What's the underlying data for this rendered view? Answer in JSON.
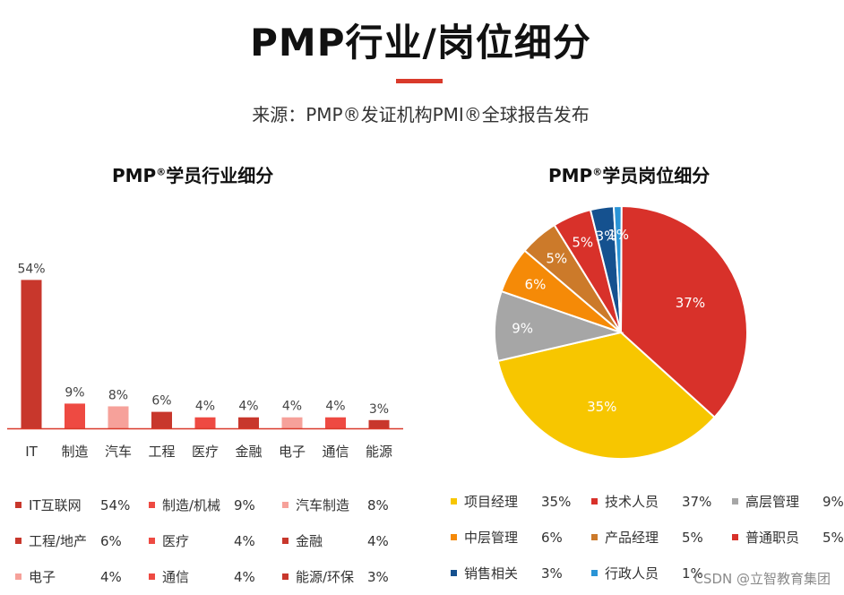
{
  "header": {
    "title": "PMP行业/岗位细分",
    "source": "来源：PMP®发证机构PMI®全球报告发布"
  },
  "colors": {
    "accent": "#d93a2b",
    "dark_red": "#c8372c",
    "red": "#ee4a42",
    "pink": "#f6a19a",
    "yellow": "#f7c600",
    "grey": "#a6a6a6",
    "orange": "#f58a07",
    "brown": "#cc7a2a",
    "navy": "#15518f",
    "blue": "#2a94d6"
  },
  "chart_data": [
    {
      "type": "bar",
      "title": "PMP",
      "title_sup": "®",
      "title_suffix": "学员行业细分",
      "categories": [
        "IT",
        "制造",
        "汽车",
        "工程",
        "医疗",
        "金融",
        "电子",
        "通信",
        "能源"
      ],
      "values": [
        54,
        9,
        8,
        6,
        4,
        4,
        4,
        4,
        3
      ],
      "value_labels": [
        "54%",
        "9%",
        "8%",
        "6%",
        "4%",
        "4%",
        "4%",
        "4%",
        "3%"
      ],
      "bar_colors": [
        "#c8372c",
        "#ee4a42",
        "#f6a19a",
        "#c8372c",
        "#ee4a42",
        "#c8372c",
        "#f6a19a",
        "#ee4a42",
        "#c8372c"
      ],
      "ylim": [
        0,
        60
      ],
      "grid": false,
      "legend": [
        {
          "label": "IT互联网",
          "value": "54%",
          "color": "#c8372c"
        },
        {
          "label": "制造/机械",
          "value": "9%",
          "color": "#ee4a42"
        },
        {
          "label": "汽车制造",
          "value": "8%",
          "color": "#f6a19a"
        },
        {
          "label": "工程/地产",
          "value": "6%",
          "color": "#c8372c"
        },
        {
          "label": "医疗",
          "value": "4%",
          "color": "#ee4a42"
        },
        {
          "label": "金融",
          "value": "4%",
          "color": "#c8372c"
        },
        {
          "label": "电子",
          "value": "4%",
          "color": "#f6a19a"
        },
        {
          "label": "通信",
          "value": "4%",
          "color": "#ee4a42"
        },
        {
          "label": "能源/环保",
          "value": "3%",
          "color": "#c8372c"
        }
      ]
    },
    {
      "type": "pie",
      "title": "PMP",
      "title_sup": "®",
      "title_suffix": "学员岗位细分",
      "slices": [
        {
          "label": "技术人员",
          "value": 37,
          "text": "37%",
          "color": "#d8312a"
        },
        {
          "label": "项目经理",
          "value": 35,
          "text": "35%",
          "color": "#f7c600"
        },
        {
          "label": "高层管理",
          "value": 9,
          "text": "9%",
          "color": "#a6a6a6"
        },
        {
          "label": "中层管理",
          "value": 6,
          "text": "6%",
          "color": "#f58a07"
        },
        {
          "label": "产品经理",
          "value": 5,
          "text": "5%",
          "color": "#cc7a2a"
        },
        {
          "label": "普通职员",
          "value": 5,
          "text": "5%",
          "color": "#d8312a"
        },
        {
          "label": "销售相关",
          "value": 3,
          "text": "3%",
          "color": "#15518f"
        },
        {
          "label": "行政人员",
          "value": 1,
          "text": "1%",
          "color": "#2a94d6"
        }
      ],
      "legend": [
        {
          "label": "项目经理",
          "value": "35%",
          "color": "#f7c600"
        },
        {
          "label": "技术人员",
          "value": "37%",
          "color": "#d8312a"
        },
        {
          "label": "高层管理",
          "value": "9%",
          "color": "#a6a6a6"
        },
        {
          "label": "中层管理",
          "value": "6%",
          "color": "#f58a07"
        },
        {
          "label": "产品经理",
          "value": "5%",
          "color": "#cc7a2a"
        },
        {
          "label": "普通职员",
          "value": "5%",
          "color": "#d8312a"
        },
        {
          "label": "销售相关",
          "value": "3%",
          "color": "#15518f"
        },
        {
          "label": "行政人员",
          "value": "1%",
          "color": "#2a94d6"
        }
      ]
    }
  ],
  "watermark": "CSDN @立智教育集团"
}
